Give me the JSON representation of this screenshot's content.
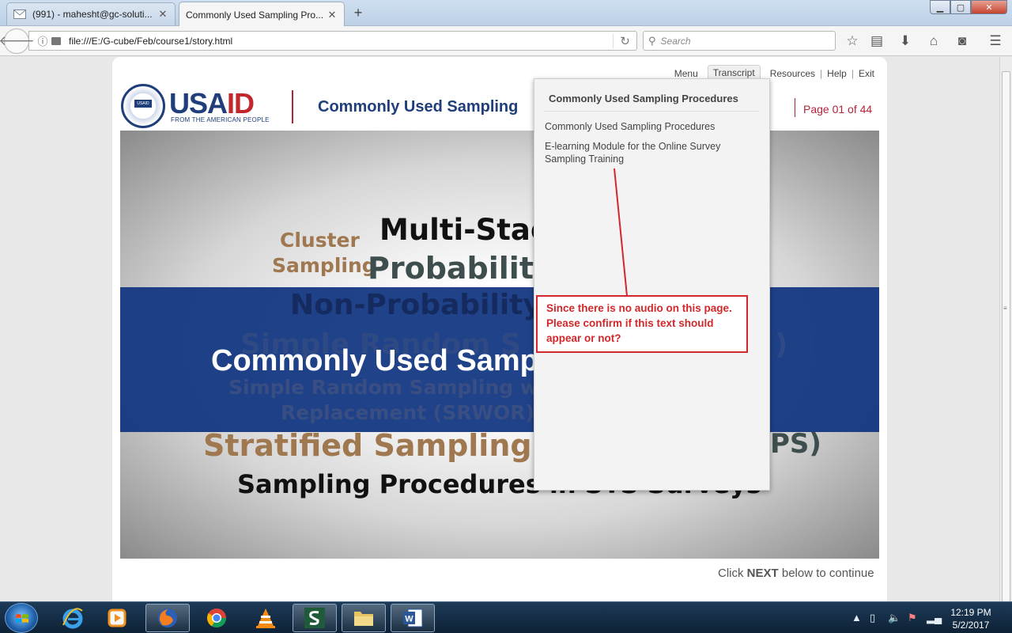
{
  "browser": {
    "tabs": [
      {
        "label": "(991) - mahesht@gc-soluti...",
        "active": false,
        "icon": "mail-icon"
      },
      {
        "label": "Commonly Used Sampling Pro...",
        "active": true
      }
    ],
    "url": "file:///E:/G-cube/Feb/course1/story.html",
    "search_placeholder": "Search",
    "toolbar_icons": [
      "bookmark-star-icon",
      "reading-list-icon",
      "download-icon",
      "home-icon",
      "pocket-icon",
      "menu-icon"
    ]
  },
  "course": {
    "logo": {
      "word_blue": "USA",
      "word_red": "ID",
      "sub": "FROM THE AMERICAN PEOPLE",
      "seal_text": "USAID"
    },
    "title": "Commonly Used Sampling",
    "page_indicator": "Page 01 of  44",
    "nav": {
      "menu": "Menu",
      "transcript": "Transcript",
      "resources": "Resources",
      "help": "Help",
      "exit": "Exit"
    },
    "slide": {
      "words": {
        "cluster": "Cluster",
        "sampling": "Sampling",
        "multi_stage": "Multi-Stag",
        "probability": "Probability",
        "non_probability": "Non-Probability",
        "simple_random_bg": "Simple Random S",
        "simple_random_bg_tail": ")",
        "srs_with": "Simple Random Sampling with",
        "replacement": "Replacement (SRWOR)",
        "stratified": "Stratified Sampling",
        "pps_tail": "PS)",
        "procedures": "Sampling Procedures in STS Surveys"
      },
      "band_title": "Commonly Used Sampling Procedures"
    },
    "cta_prefix": "Click ",
    "cta_bold": "NEXT",
    "cta_suffix": " below to continue"
  },
  "transcript": {
    "heading": "Commonly Used Sampling Procedures",
    "paragraph1": "Commonly Used Sampling Procedures",
    "paragraph2": "E-learning Module for the Online Survey Sampling Training"
  },
  "callout": {
    "text": "Since there is no audio on this page. Please confirm if this text should appear or not?",
    "color": "#d0282b"
  },
  "taskbar": {
    "apps": [
      "internet-explorer-icon",
      "media-player-icon",
      "firefox-icon",
      "chrome-icon",
      "vlc-icon",
      "s-app-icon",
      "file-explorer-icon",
      "word-icon"
    ],
    "time": "12:19 PM",
    "date": "5/2/2017"
  },
  "colors": {
    "brand_blue": "#1f3e7a",
    "brand_red": "#c1272d",
    "band_blue": "#0e3480",
    "accent_red": "#b1243a"
  }
}
